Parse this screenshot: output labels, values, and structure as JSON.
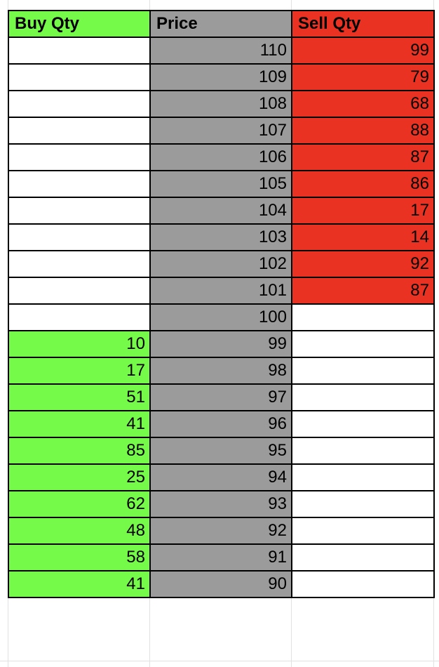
{
  "colors": {
    "buy": "#76fa4a",
    "price": "#9b9b9b",
    "sell": "#ea3223",
    "empty": "#ffffff",
    "border": "#000000"
  },
  "headers": {
    "buy": "Buy Qty",
    "price": "Price",
    "sell": "Sell Qty"
  },
  "rows": [
    {
      "buy": "",
      "price": "110",
      "sell": "99"
    },
    {
      "buy": "",
      "price": "109",
      "sell": "79"
    },
    {
      "buy": "",
      "price": "108",
      "sell": "68"
    },
    {
      "buy": "",
      "price": "107",
      "sell": "88"
    },
    {
      "buy": "",
      "price": "106",
      "sell": "87"
    },
    {
      "buy": "",
      "price": "105",
      "sell": "86"
    },
    {
      "buy": "",
      "price": "104",
      "sell": "17"
    },
    {
      "buy": "",
      "price": "103",
      "sell": "14"
    },
    {
      "buy": "",
      "price": "102",
      "sell": "92"
    },
    {
      "buy": "",
      "price": "101",
      "sell": "87"
    },
    {
      "buy": "",
      "price": "100",
      "sell": ""
    },
    {
      "buy": "10",
      "price": "99",
      "sell": ""
    },
    {
      "buy": "17",
      "price": "98",
      "sell": ""
    },
    {
      "buy": "51",
      "price": "97",
      "sell": ""
    },
    {
      "buy": "41",
      "price": "96",
      "sell": ""
    },
    {
      "buy": "85",
      "price": "95",
      "sell": ""
    },
    {
      "buy": "25",
      "price": "94",
      "sell": ""
    },
    {
      "buy": "62",
      "price": "93",
      "sell": ""
    },
    {
      "buy": "48",
      "price": "92",
      "sell": ""
    },
    {
      "buy": "58",
      "price": "91",
      "sell": ""
    },
    {
      "buy": "41",
      "price": "90",
      "sell": ""
    }
  ]
}
